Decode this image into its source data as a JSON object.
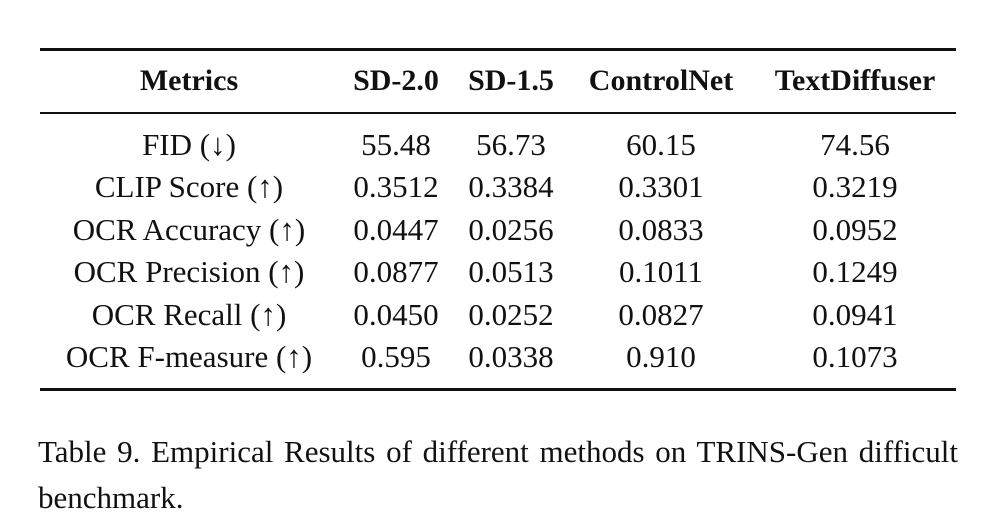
{
  "table": {
    "headers": [
      "Metrics",
      "SD-2.0",
      "SD-1.5",
      "ControlNet",
      "TextDiffuser"
    ],
    "rows": [
      [
        "FID (↓)",
        "55.48",
        "56.73",
        "60.15",
        "74.56"
      ],
      [
        "CLIP Score (↑)",
        "0.3512",
        "0.3384",
        "0.3301",
        "0.3219"
      ],
      [
        "OCR Accuracy (↑)",
        "0.0447",
        "0.0256",
        "0.0833",
        "0.0952"
      ],
      [
        "OCR Precision (↑)",
        "0.0877",
        "0.0513",
        "0.1011",
        "0.1249"
      ],
      [
        "OCR Recall (↑)",
        "0.0450",
        "0.0252",
        "0.0827",
        "0.0941"
      ],
      [
        "OCR F-measure (↑)",
        "0.595",
        "0.0338",
        "0.910",
        "0.1073"
      ]
    ]
  },
  "caption": "Table 9. Empirical Results of different methods on TRINS-Gen difficult benchmark."
}
